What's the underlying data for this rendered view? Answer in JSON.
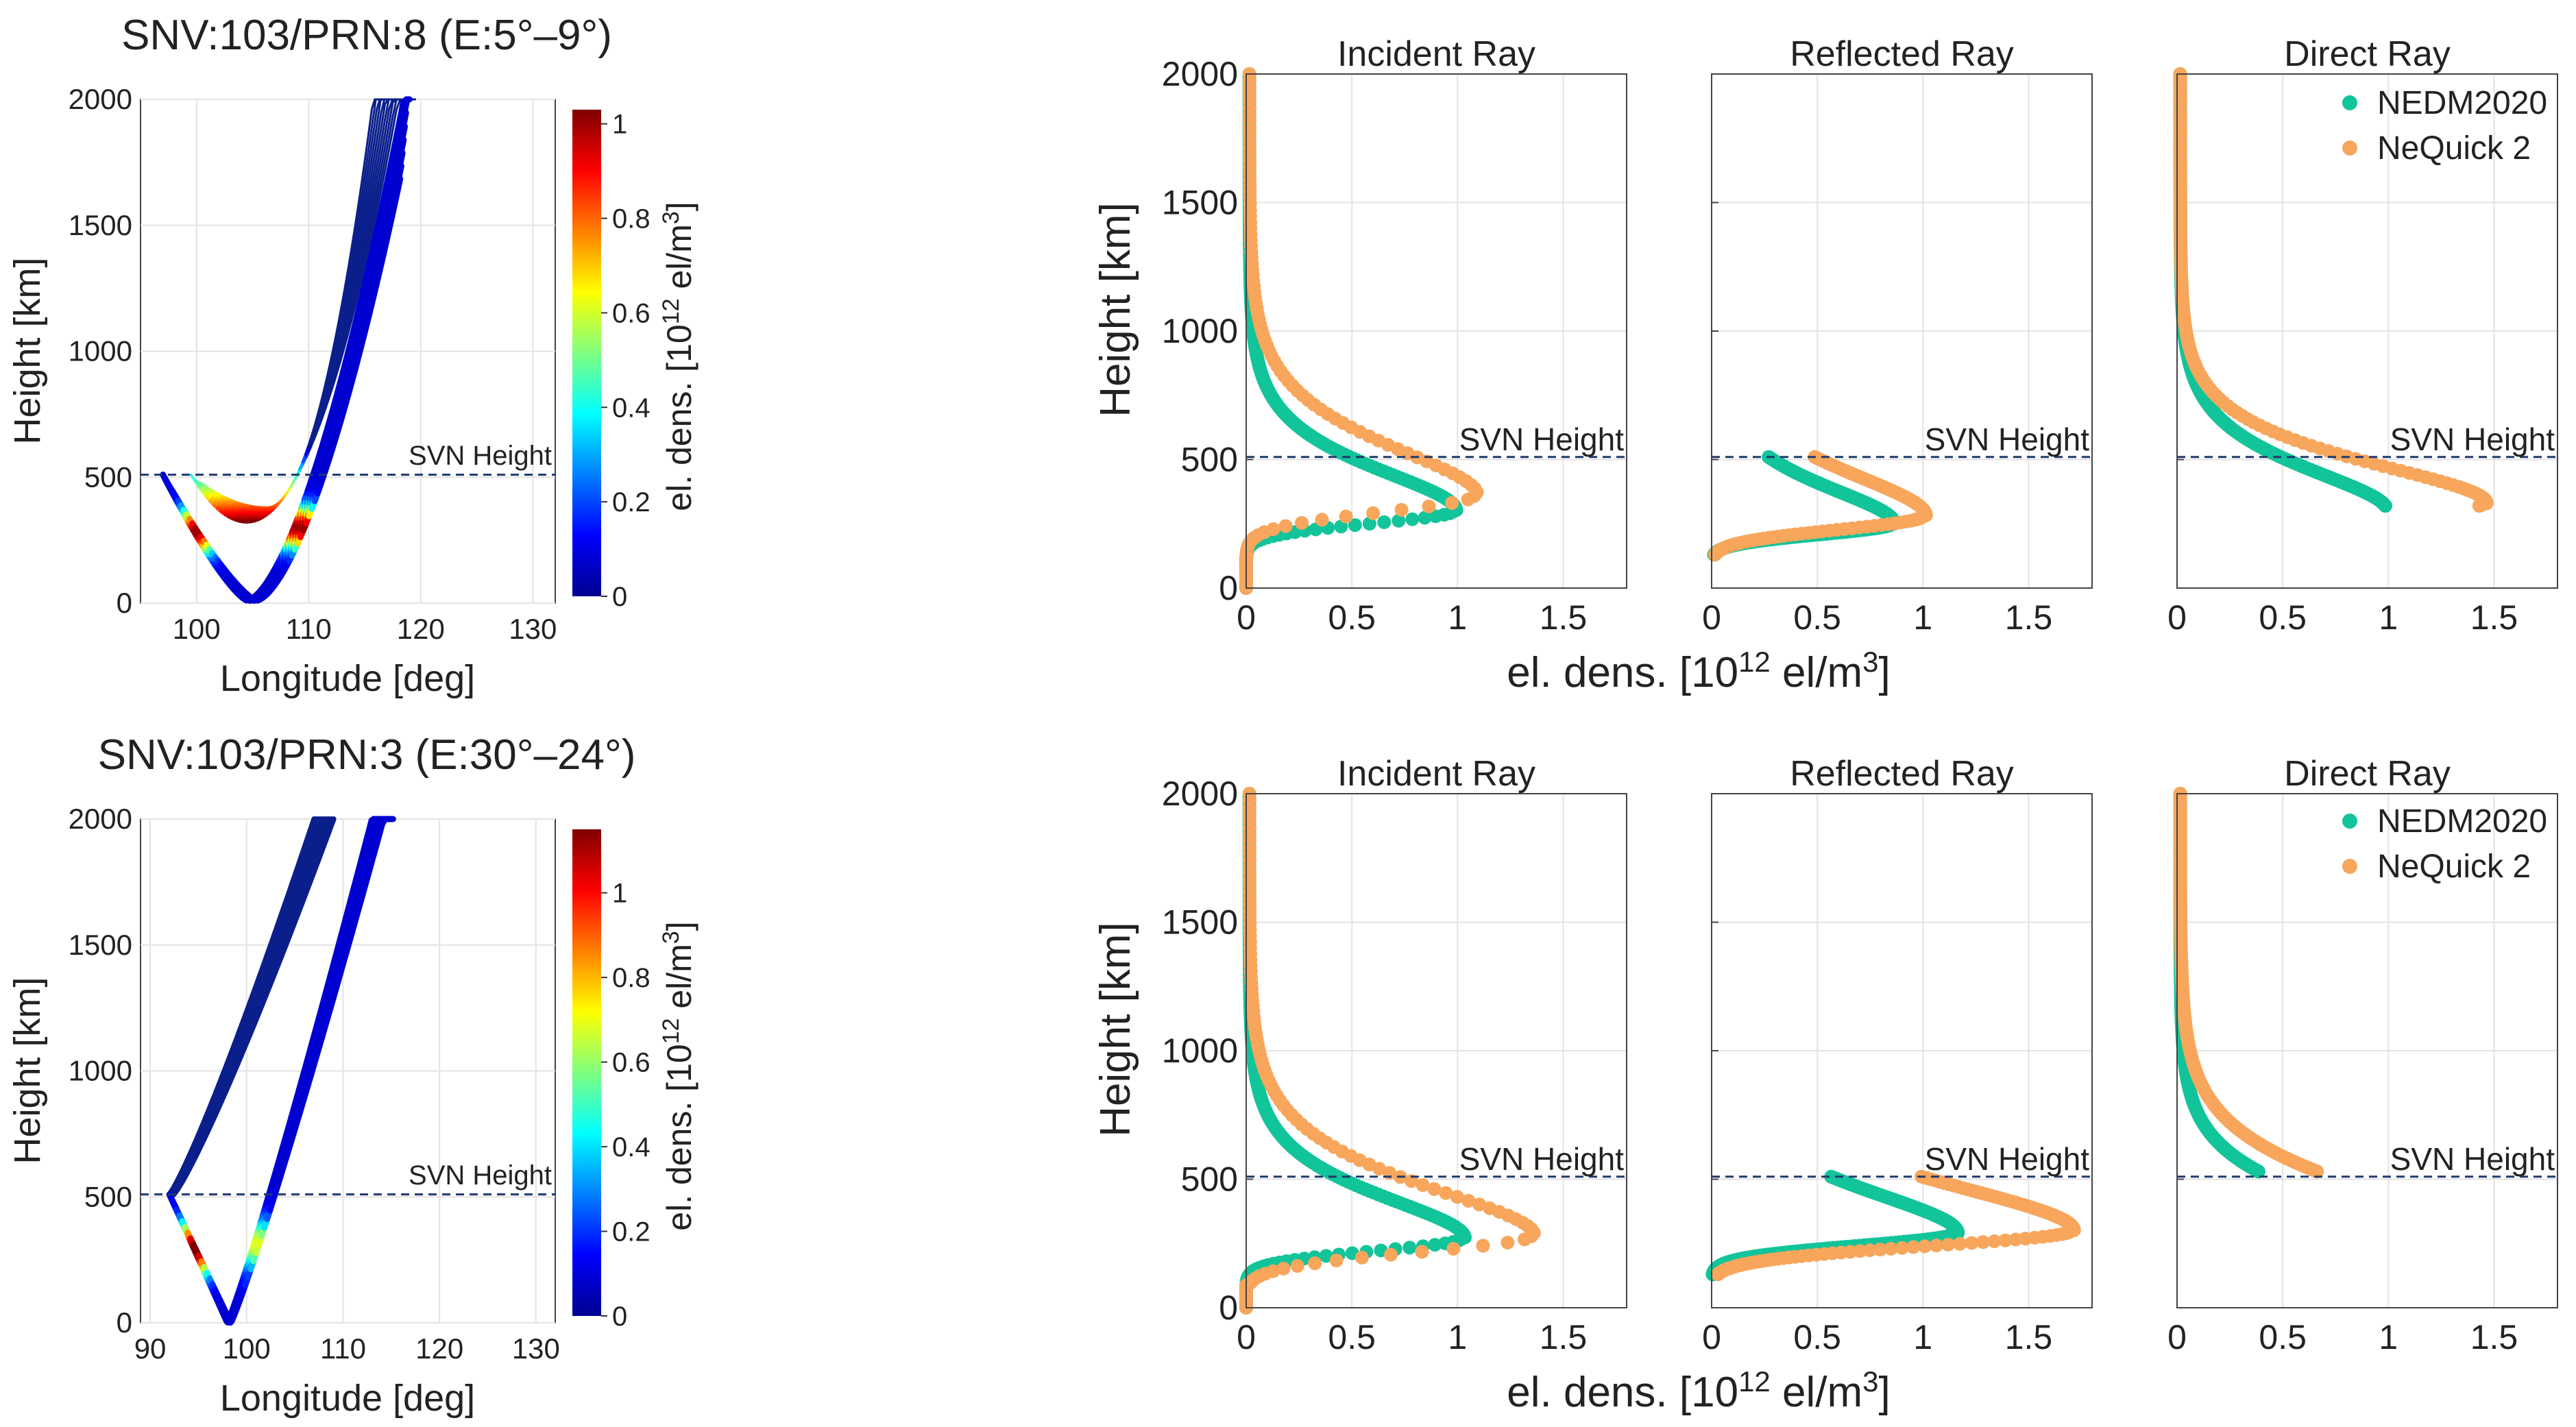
{
  "colors": {
    "nedm": "#12C49A",
    "nequick": "#F7A65C",
    "svn_line": "#1F3A6E",
    "axis": "#444444",
    "grid": "#e3e3e3",
    "ray_start": "#0b1f8c"
  },
  "labels": {
    "svn_height": "SVN Height",
    "height_km": "Height [km]",
    "longitude_deg": "Longitude [deg]",
    "eldens_prefix": "el. dens. [10",
    "eldens_exp": "12",
    "eldens_unit": " el/m",
    "eldens_unit_exp": "3",
    "eldens_close": "]"
  },
  "legend": {
    "nedm": "NEDM2020",
    "nequick": "NeQuick 2"
  },
  "panel_titles": {
    "incident": "Incident Ray",
    "reflected": "Reflected Ray",
    "direct": "Direct Ray"
  },
  "chart_data": [
    {
      "type": "line",
      "id": "top-map",
      "title": "SNV:103/PRN:8 (E:5°–9°)",
      "xlabel": "Longitude [deg]",
      "ylabel": "Height [km]",
      "xlim": [
        95,
        132
      ],
      "ylim": [
        0,
        2000
      ],
      "xticks": [
        100,
        110,
        120,
        130
      ],
      "yticks": [
        0,
        500,
        1000,
        1500,
        2000
      ],
      "svn_height_km": 510,
      "colorbar": {
        "label": "el. dens. [10^12 el/m^3]",
        "range": [
          0,
          1.03
        ],
        "ticks": [
          0,
          0.2,
          0.4,
          0.6,
          0.8,
          1
        ]
      },
      "ray_bundles": [
        {
          "name": "incident",
          "from": [
            97,
            510
          ],
          "vertex": [
            104.5,
            10
          ],
          "to": [
            118.5,
            2000
          ],
          "width_km": 90
        },
        {
          "name": "reflected",
          "from": [
            100,
            510
          ],
          "vertex": [
            106,
            360
          ],
          "to": [
            116,
            2000
          ],
          "fan_count": 10,
          "fan_spread_deg": 4.5
        }
      ]
    },
    {
      "type": "line",
      "id": "bottom-map",
      "title": "SNV:103/PRN:3 (E:30°–24°)",
      "xlabel": "Longitude [deg]",
      "ylabel": "Height [km]",
      "xlim": [
        89,
        132
      ],
      "ylim": [
        0,
        2000
      ],
      "xticks": [
        90,
        100,
        110,
        120,
        130
      ],
      "yticks": [
        0,
        500,
        1000,
        1500,
        2000
      ],
      "svn_height_km": 510,
      "colorbar": {
        "label": "el. dens. [10^12 el/m^3]",
        "range": [
          0,
          1.15
        ],
        "ticks": [
          0,
          0.2,
          0.4,
          0.6,
          0.8,
          1
        ]
      },
      "ray_bundles": [
        {
          "name": "incident",
          "from": [
            92,
            510
          ],
          "to": [
            98,
            0
          ],
          "then_to": [
            113,
            2000
          ]
        },
        {
          "name": "direct",
          "from": [
            92,
            510
          ],
          "to": [
            108.5,
            2000
          ]
        }
      ]
    },
    {
      "type": "scatter",
      "id": "top-profiles",
      "xlabel": "el. dens. [10^12 el/m^3]",
      "ylabel": "Height [km]",
      "xlim": [
        0,
        1.8
      ],
      "ylim": [
        0,
        2000
      ],
      "xticks": [
        0,
        0.5,
        1,
        1.5
      ],
      "yticks": [
        0,
        500,
        1000,
        1500,
        2000
      ],
      "svn_height_km": 510,
      "panels": [
        {
          "name": "Incident Ray",
          "hmin": 0,
          "hmax": 2000,
          "series": [
            {
              "name": "NEDM2020",
              "peak": 0.98,
              "hpeak": 300,
              "scale_above": 140,
              "scale_below": 65
            },
            {
              "name": "NeQuick 2",
              "peak": 1.08,
              "hpeak": 360,
              "scale_above": 165,
              "scale_below": 85
            }
          ]
        },
        {
          "name": "Reflected Ray",
          "hmin": 130,
          "hmax": 510,
          "series": [
            {
              "name": "NEDM2020",
              "peak": 0.85,
              "hpeak": 250,
              "scale_above": 125,
              "scale_below": 55
            },
            {
              "name": "NeQuick 2",
              "peak": 1.0,
              "hpeak": 280,
              "scale_above": 150,
              "scale_below": 70
            }
          ]
        },
        {
          "name": "Direct Ray",
          "hmin": 320,
          "hmax": 2000,
          "series": [
            {
              "name": "NEDM2020",
              "peak": 0.98,
              "hpeak": 300,
              "scale_above": 140,
              "scale_below": 65
            },
            {
              "name": "NeQuick 2",
              "peak": 1.45,
              "hpeak": 330,
              "scale_above": 135,
              "scale_below": 80
            }
          ]
        }
      ],
      "legend_entries": [
        "NEDM2020",
        "NeQuick 2"
      ]
    },
    {
      "type": "scatter",
      "id": "bottom-profiles",
      "xlabel": "el. dens. [10^12 el/m^3]",
      "ylabel": "Height [km]",
      "xlim": [
        0,
        1.8
      ],
      "ylim": [
        0,
        2000
      ],
      "xticks": [
        0,
        0.5,
        1,
        1.5
      ],
      "yticks": [
        0,
        500,
        1000,
        1500,
        2000
      ],
      "svn_height_km": 510,
      "panels": [
        {
          "name": "Incident Ray",
          "hmin": 0,
          "hmax": 2000,
          "series": [
            {
              "name": "NEDM2020",
              "peak": 1.02,
              "hpeak": 270,
              "scale_above": 140,
              "scale_below": 65
            },
            {
              "name": "NeQuick 2",
              "peak": 1.35,
              "hpeak": 280,
              "scale_above": 165,
              "scale_below": 85
            }
          ]
        },
        {
          "name": "Reflected Ray",
          "hmin": 130,
          "hmax": 510,
          "series": [
            {
              "name": "NEDM2020",
              "peak": 1.15,
              "hpeak": 290,
              "scale_above": 145,
              "scale_below": 65
            },
            {
              "name": "NeQuick 2",
              "peak": 1.7,
              "hpeak": 300,
              "scale_above": 165,
              "scale_below": 80
            }
          ]
        },
        {
          "name": "Direct Ray",
          "hmin": 530,
          "hmax": 2000,
          "series": [
            {
              "name": "NEDM2020",
              "peak": 1.02,
              "hpeak": 270,
              "scale_above": 140,
              "scale_below": 65
            },
            {
              "name": "NeQuick 2",
              "peak": 1.35,
              "hpeak": 280,
              "scale_above": 165,
              "scale_below": 85
            }
          ]
        }
      ],
      "legend_entries": [
        "NEDM2020",
        "NeQuick 2"
      ]
    }
  ]
}
